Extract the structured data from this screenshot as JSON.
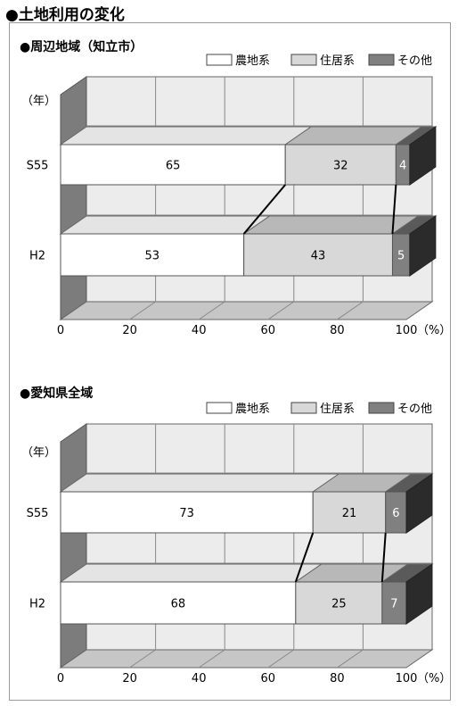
{
  "page_title": "●土地利用の変化",
  "chart_data": [
    {
      "type": "bar",
      "stacked": true,
      "orientation": "horizontal",
      "title": "●周辺地域（知立市）",
      "ylabel": "（年）",
      "categories": [
        "S55",
        "H2"
      ],
      "series": [
        {
          "name": "農地系",
          "values": [
            65,
            53
          ],
          "color": "#ffffff"
        },
        {
          "name": "住居系",
          "values": [
            32,
            43
          ],
          "color": "#d8d8d8"
        },
        {
          "name": "その他",
          "values": [
            4,
            5
          ],
          "color": "#808080"
        }
      ],
      "xticks": [
        "0",
        "20",
        "40",
        "60",
        "80",
        "100"
      ],
      "xunit": "（%）",
      "xlim": [
        0,
        100
      ],
      "grid": true,
      "legend_position": "top-right"
    },
    {
      "type": "bar",
      "stacked": true,
      "orientation": "horizontal",
      "title": "●愛知県全域",
      "ylabel": "（年）",
      "categories": [
        "S55",
        "H2"
      ],
      "series": [
        {
          "name": "農地系",
          "values": [
            73,
            68
          ],
          "color": "#ffffff"
        },
        {
          "name": "住居系",
          "values": [
            21,
            25
          ],
          "color": "#d8d8d8"
        },
        {
          "name": "その他",
          "values": [
            6,
            7
          ],
          "color": "#808080"
        }
      ],
      "xticks": [
        "0",
        "20",
        "40",
        "60",
        "80",
        "100"
      ],
      "xunit": "（%）",
      "xlim": [
        0,
        100
      ],
      "grid": true,
      "legend_position": "top-right"
    }
  ]
}
